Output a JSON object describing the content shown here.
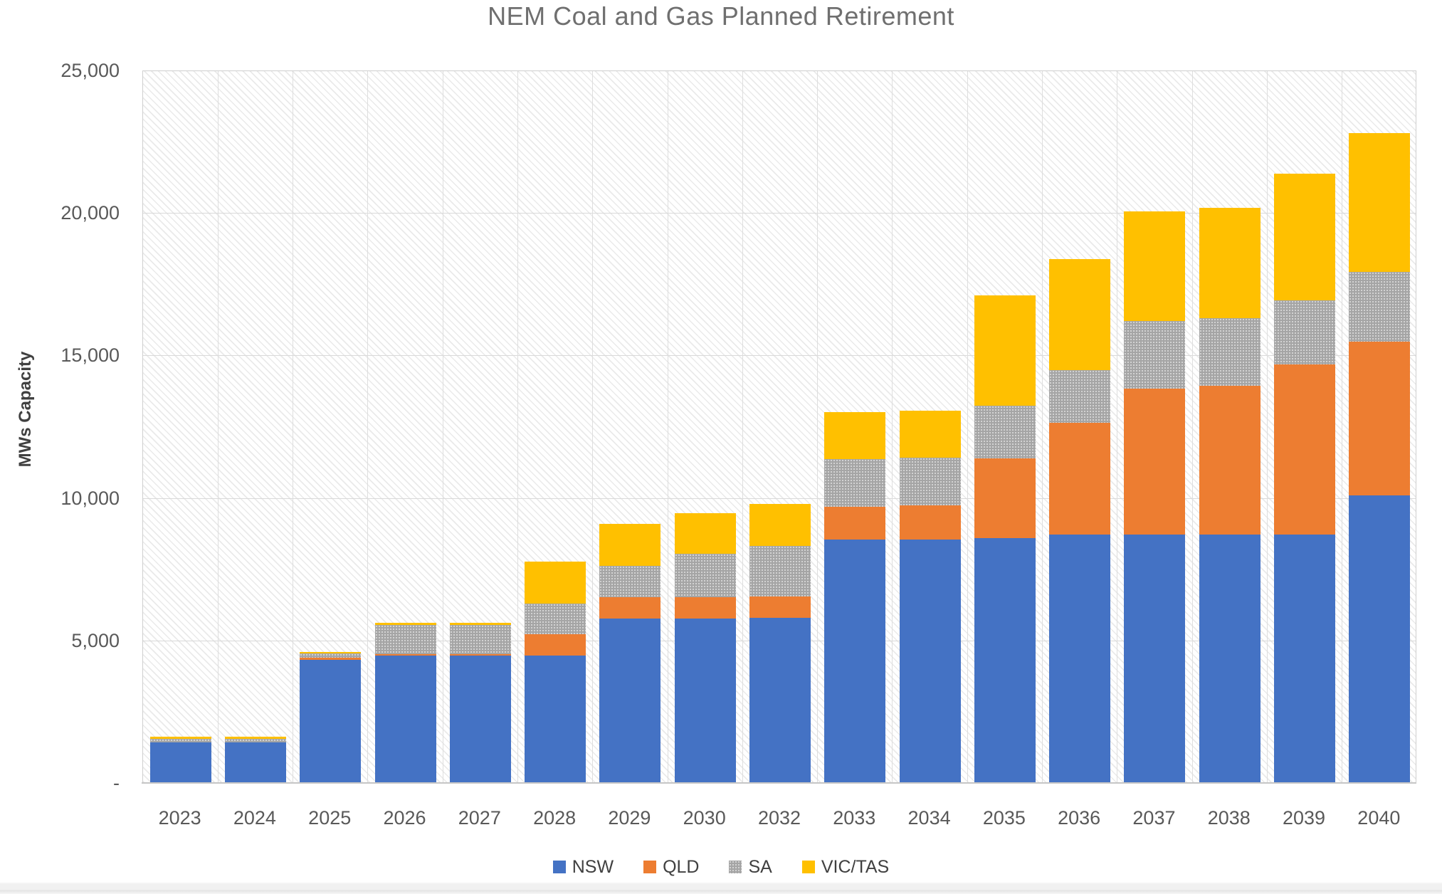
{
  "chart_data": {
    "type": "bar",
    "stacked": true,
    "title": "NEM Coal and Gas Planned Retirement",
    "xlabel": "",
    "ylabel": "MWs Capacity",
    "ylim": [
      0,
      25000
    ],
    "grid": true,
    "plot_background": "diagonal-hatch",
    "legend_position": "bottom",
    "yticks": [
      {
        "value": 0,
        "label": "-"
      },
      {
        "value": 5000,
        "label": "5,000"
      },
      {
        "value": 10000,
        "label": "10,000"
      },
      {
        "value": 15000,
        "label": "15,000"
      },
      {
        "value": 20000,
        "label": "20,000"
      },
      {
        "value": 25000,
        "label": "25,000"
      }
    ],
    "categories": [
      "2023",
      "2024",
      "2025",
      "2026",
      "2027",
      "2028",
      "2029",
      "2030",
      "2032",
      "2033",
      "2034",
      "2035",
      "2036",
      "2037",
      "2038",
      "2039",
      "2040"
    ],
    "series": [
      {
        "name": "NSW",
        "color": "#4472C4",
        "pattern": "solid",
        "values": [
          1400,
          1400,
          4300,
          4440,
          4440,
          4440,
          5740,
          5740,
          5760,
          8510,
          8510,
          8560,
          8690,
          8690,
          8690,
          8690,
          10070
        ]
      },
      {
        "name": "QLD",
        "color": "#ED7D31",
        "pattern": "solid",
        "values": [
          0,
          0,
          60,
          60,
          60,
          750,
          760,
          760,
          760,
          1150,
          1200,
          2800,
          3930,
          5130,
          5210,
          5970,
          5400
        ]
      },
      {
        "name": "SA",
        "color": "#A5A5A5",
        "pattern": "dotted",
        "values": [
          130,
          130,
          150,
          1030,
          1030,
          1090,
          1090,
          1510,
          1770,
          1670,
          1680,
          1840,
          1840,
          2360,
          2380,
          2250,
          2430
        ]
      },
      {
        "name": "VIC/TAS",
        "color": "#FFC000",
        "pattern": "solid",
        "values": [
          70,
          70,
          60,
          70,
          70,
          1470,
          1470,
          1440,
          1470,
          1650,
          1650,
          3880,
          3890,
          3860,
          3870,
          4440,
          4890
        ]
      }
    ],
    "totals": [
      1600,
      1600,
      4570,
      5600,
      5600,
      7750,
      9060,
      9450,
      9760,
      12980,
      13040,
      17080,
      18350,
      20040,
      20150,
      21350,
      22790
    ],
    "colors": {
      "title_text": "#6f6f6f",
      "axis_text": "#595959",
      "axis_title_text": "#404040",
      "gridline": "#d9d9d9"
    }
  }
}
